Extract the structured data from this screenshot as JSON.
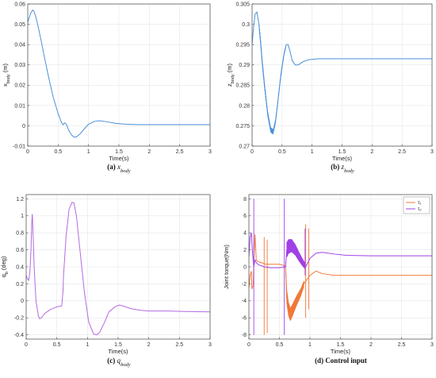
{
  "chart_data": [
    {
      "type": "line",
      "caption_label": "(a)",
      "caption_text": "x",
      "caption_sub": "body",
      "xlabel": "Time(s)",
      "ylabel": "x",
      "ylabel_sub": "body",
      "ylabel_unit": " (m)",
      "xlim": [
        0,
        3
      ],
      "ylim": [
        -0.01,
        0.06
      ],
      "xticks": [
        0,
        0.5,
        1,
        1.5,
        2,
        2.5,
        3
      ],
      "yticks": [
        -0.01,
        0,
        0.01,
        0.02,
        0.03,
        0.04,
        0.05,
        0.06
      ],
      "ytick_labels": [
        "-0.01",
        "0",
        "0.01",
        "0.02",
        "0.03",
        "0.04",
        "0.05",
        "0.06"
      ],
      "grid": true,
      "series": [
        {
          "color": "#4a90d9",
          "x": [
            0,
            0.02,
            0.05,
            0.08,
            0.1,
            0.13,
            0.17,
            0.22,
            0.28,
            0.35,
            0.42,
            0.5,
            0.55,
            0.58,
            0.61,
            0.64,
            0.67,
            0.72,
            0.76,
            0.8,
            0.86,
            0.93,
            1.0,
            1.1,
            1.18,
            1.3,
            1.45,
            1.6,
            1.8,
            2.0,
            2.5,
            3.0
          ],
          "y": [
            0.051,
            0.053,
            0.0555,
            0.057,
            0.0565,
            0.054,
            0.049,
            0.042,
            0.033,
            0.023,
            0.014,
            0.006,
            0.002,
            0.0005,
            0.0015,
            0.0005,
            -0.002,
            -0.0045,
            -0.0055,
            -0.0055,
            -0.004,
            -0.0015,
            0.0008,
            0.0022,
            0.0025,
            0.002,
            0.0012,
            0.0008,
            0.0006,
            0.0006,
            0.0006,
            0.0006
          ]
        }
      ]
    },
    {
      "type": "line",
      "caption_label": "(b)",
      "caption_text": "z",
      "caption_sub": "body",
      "xlabel": "Time(s)",
      "ylabel": "z",
      "ylabel_sub": "body",
      "ylabel_unit": " (m)",
      "xlim": [
        0,
        3
      ],
      "ylim": [
        0.27,
        0.305
      ],
      "xticks": [
        0,
        0.5,
        1,
        1.5,
        2,
        2.5,
        3
      ],
      "yticks": [
        0.27,
        0.275,
        0.28,
        0.285,
        0.29,
        0.295,
        0.3,
        0.305
      ],
      "ytick_labels": [
        "0.27",
        "0.275",
        "0.28",
        "0.285",
        "0.29",
        "0.295",
        "0.3",
        "0.305"
      ],
      "grid": true,
      "series": [
        {
          "color": "#4a90d9",
          "x": [
            0,
            0.02,
            0.05,
            0.08,
            0.11,
            0.14,
            0.17,
            0.21,
            0.26,
            0.31,
            0.35,
            0.39,
            0.43,
            0.48,
            0.53,
            0.57,
            0.6,
            0.63,
            0.67,
            0.72,
            0.77,
            0.85,
            0.95,
            1.1,
            1.3,
            1.6,
            2.0,
            2.5,
            3.0
          ],
          "y": [
            0.295,
            0.2985,
            0.3025,
            0.303,
            0.3005,
            0.296,
            0.2905,
            0.2845,
            0.278,
            0.274,
            0.2735,
            0.276,
            0.281,
            0.2875,
            0.2925,
            0.295,
            0.295,
            0.2935,
            0.291,
            0.29,
            0.29,
            0.2908,
            0.2913,
            0.2915,
            0.2915,
            0.2915,
            0.2915,
            0.2915,
            0.2915
          ],
          "band": [
            0.12,
            0.56,
            0.0009
          ]
        }
      ]
    },
    {
      "type": "line",
      "caption_label": "(c)",
      "caption_text": "q",
      "caption_sub": "body",
      "xlabel": "Time(s)",
      "ylabel": "q",
      "ylabel_sub": "b",
      "ylabel_unit": " (deg)",
      "xlim": [
        0,
        3
      ],
      "ylim": [
        -0.45,
        1.25
      ],
      "xticks": [
        0,
        0.5,
        1,
        1.5,
        2,
        2.5,
        3
      ],
      "yticks": [
        -0.4,
        -0.2,
        0,
        0.2,
        0.4,
        0.6,
        0.8,
        1,
        1.2
      ],
      "ytick_labels": [
        "-0.4",
        "-0.2",
        "0",
        "0.2",
        "0.4",
        "0.6",
        "0.8",
        "1",
        "1.2"
      ],
      "grid": true,
      "series": [
        {
          "color": "#b36ae2",
          "x": [
            0,
            0.02,
            0.04,
            0.06,
            0.08,
            0.09,
            0.1,
            0.11,
            0.13,
            0.16,
            0.2,
            0.22,
            0.25,
            0.3,
            0.4,
            0.5,
            0.58,
            0.6,
            0.61,
            0.65,
            0.7,
            0.75,
            0.78,
            0.82,
            0.87,
            0.95,
            1.02,
            1.1,
            1.15,
            1.2,
            1.28,
            1.35,
            1.45,
            1.52,
            1.58,
            1.7,
            1.85,
            2.0,
            2.3,
            2.6,
            3.0
          ],
          "y": [
            0.3,
            0.26,
            0.24,
            0.33,
            0.62,
            0.9,
            1.02,
            0.85,
            0.4,
            0.0,
            -0.18,
            -0.21,
            -0.2,
            -0.15,
            -0.1,
            -0.07,
            -0.06,
            0.1,
            0.3,
            0.75,
            1.08,
            1.16,
            1.15,
            1.0,
            0.65,
            0.1,
            -0.25,
            -0.39,
            -0.4,
            -0.37,
            -0.25,
            -0.13,
            -0.07,
            -0.05,
            -0.06,
            -0.09,
            -0.11,
            -0.12,
            -0.12,
            -0.125,
            -0.13
          ]
        }
      ]
    },
    {
      "type": "line",
      "caption_label": "(d)",
      "caption_text": "Control input",
      "caption_sub": "",
      "xlabel": "Time(s)",
      "ylabel": "Joint torque(Nm)",
      "ylabel_sub": "",
      "ylabel_unit": "",
      "xlim": [
        0,
        3
      ],
      "ylim": [
        -8.5,
        8.5
      ],
      "xticks": [
        0,
        0.5,
        1,
        1.5,
        2,
        2.5,
        3
      ],
      "yticks": [
        -8,
        -6,
        -4,
        -2,
        0,
        2,
        4,
        6,
        8
      ],
      "ytick_labels": [
        "-8",
        "-6",
        "-4",
        "-2",
        "0",
        "2",
        "4",
        "6",
        "8"
      ],
      "grid": true,
      "legend": "top-right",
      "legend_entries": [
        "τ₁",
        "τ₂"
      ],
      "series": [
        {
          "color": "#f07838",
          "x": [
            0,
            0.02,
            0.04,
            0.05,
            0.07,
            0.08,
            0.1,
            0.12,
            0.15,
            0.2,
            0.28,
            0.4,
            0.5,
            0.6,
            0.62,
            0.65,
            0.68,
            0.72,
            0.78,
            0.85,
            0.9,
            1.0,
            1.1,
            1.2,
            1.4,
            1.6,
            2.0,
            2.5,
            3.0
          ],
          "y": [
            -2.5,
            -1.0,
            -0.5,
            -2.6,
            -2.2,
            0.8,
            3.8,
            0.8,
            0.6,
            0.5,
            0.3,
            0.3,
            0.3,
            0.1,
            -3.5,
            -5.0,
            -5.6,
            -5.0,
            -4.0,
            -3.0,
            -2.0,
            -1.0,
            -0.5,
            -0.8,
            -1.0,
            -1.0,
            -1.0,
            -1.0,
            -1.0
          ],
          "spikes": [
            [
              0.25,
              -8.0,
              3.5
            ],
            [
              0.3,
              -7.8,
              3.2
            ],
            [
              0.93,
              -6.0,
              5.0
            ],
            [
              0.98,
              -5.0,
              4.5
            ]
          ],
          "band": [
            0.61,
            0.9,
            0.9
          ]
        },
        {
          "color": "#a040e8",
          "x": [
            0,
            0.02,
            0.04,
            0.06,
            0.08,
            0.1,
            0.13,
            0.17,
            0.25,
            0.35,
            0.5,
            0.6,
            0.62,
            0.65,
            0.7,
            0.76,
            0.82,
            0.88,
            0.93,
            1.0,
            1.1,
            1.2,
            1.4,
            1.6,
            2.0,
            2.5,
            3.0
          ],
          "y": [
            1.2,
            3.5,
            4.0,
            1.5,
            0.0,
            0.8,
            0.4,
            0.2,
            0.0,
            -0.1,
            -0.1,
            0.0,
            2.0,
            2.4,
            2.5,
            2.0,
            1.2,
            0.5,
            0.0,
            1.0,
            1.6,
            1.7,
            1.5,
            1.35,
            1.3,
            1.3,
            1.3
          ],
          "spikes": [
            [
              0.08,
              -8.0,
              8.0
            ],
            [
              0.58,
              -8.0,
              8.0
            ],
            [
              0.92,
              -1.0,
              4.5
            ]
          ],
          "band": [
            0.62,
            0.92,
            0.9
          ]
        }
      ]
    }
  ]
}
